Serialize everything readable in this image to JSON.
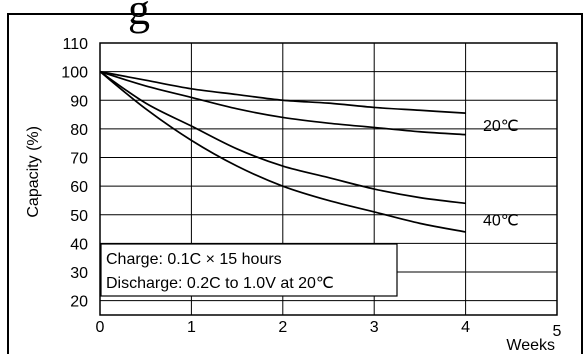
{
  "title_fragment": "g",
  "chart_data": {
    "type": "line",
    "xlabel": "Weeks",
    "ylabel": "Capacity (%)",
    "xlim": [
      0,
      5
    ],
    "ylim": [
      15,
      110
    ],
    "x_ticks": [
      "0",
      "1",
      "2",
      "3",
      "4",
      "5"
    ],
    "y_ticks": [
      "110",
      "100",
      "90",
      "80",
      "70",
      "60",
      "50",
      "40",
      "30",
      "20"
    ],
    "grid": true,
    "series": [
      {
        "name": "20℃",
        "label_group": "20℃",
        "x": [
          0,
          0.5,
          1,
          1.5,
          2,
          2.5,
          3,
          3.5,
          4
        ],
        "y": [
          100,
          97,
          94,
          92,
          90,
          89,
          87.5,
          86.5,
          85.5
        ]
      },
      {
        "name": "20℃",
        "label_group": "20℃",
        "x": [
          0,
          0.5,
          1,
          1.5,
          2,
          2.5,
          3,
          3.5,
          4
        ],
        "y": [
          100,
          95,
          91,
          87,
          84,
          82,
          80.5,
          79,
          78
        ]
      },
      {
        "name": "40℃",
        "label_group": "40℃",
        "x": [
          0,
          0.5,
          1,
          1.5,
          2,
          2.5,
          3,
          3.5,
          4
        ],
        "y": [
          100,
          89,
          81,
          73,
          67,
          63,
          59,
          56,
          54
        ]
      },
      {
        "name": "40℃",
        "label_group": "40℃",
        "x": [
          0,
          0.5,
          1,
          1.5,
          2,
          2.5,
          3,
          3.5,
          4
        ],
        "y": [
          100,
          87,
          76,
          67,
          60,
          55,
          51,
          47,
          44
        ]
      }
    ],
    "series_labels": [
      "20℃",
      "40℃"
    ],
    "annotations": [
      "Charge: 0.1C × 15 hours",
      "Discharge: 0.2C to 1.0V at 20℃"
    ]
  }
}
